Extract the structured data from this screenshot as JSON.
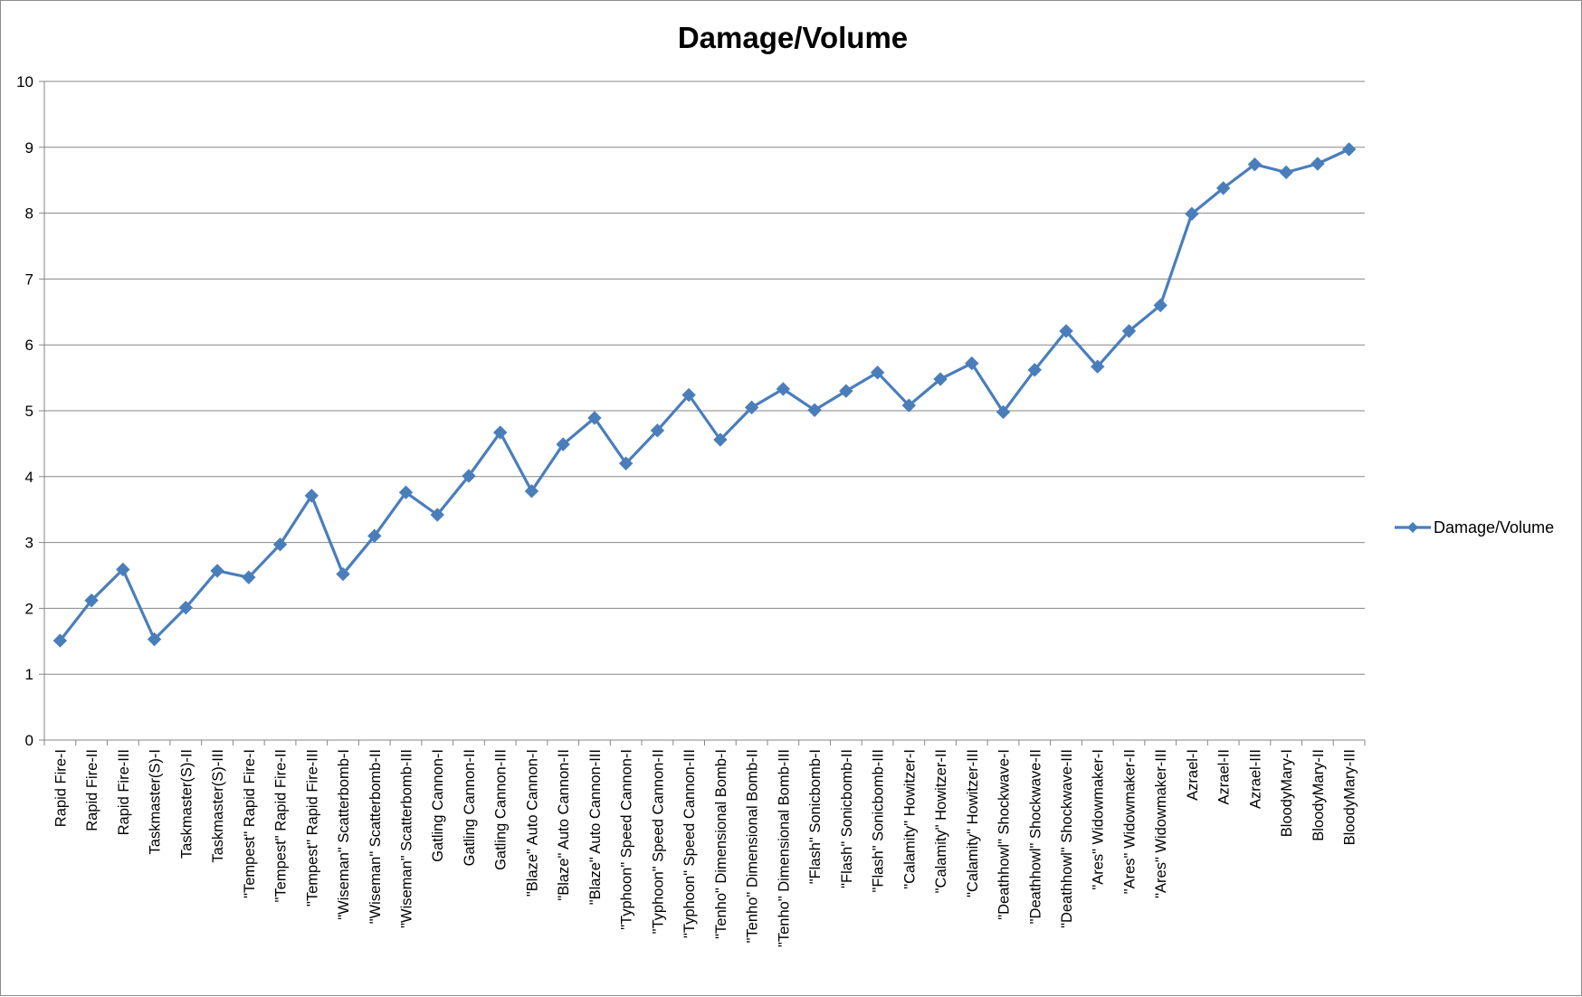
{
  "chart_data": {
    "type": "line",
    "title": "Damage/Volume",
    "xlabel": "",
    "ylabel": "",
    "ylim": [
      0,
      10
    ],
    "yticks": [
      0,
      1,
      2,
      3,
      4,
      5,
      6,
      7,
      8,
      9,
      10
    ],
    "grid": true,
    "legend_position": "right",
    "categories": [
      "Rapid Fire-I",
      "Rapid Fire-II",
      "Rapid Fire-III",
      "Taskmaster(S)-I",
      "Taskmaster(S)-II",
      "Taskmaster(S)-III",
      "\"Tempest\" Rapid Fire-I",
      "\"Tempest\" Rapid Fire-II",
      "\"Tempest\" Rapid Fire-III",
      "\"Wiseman\" Scatterbomb-I",
      "\"Wiseman\" Scatterbomb-II",
      "\"Wiseman\" Scatterbomb-III",
      "Gatling Cannon-I",
      "Gatling Cannon-II",
      "Gatling Cannon-III",
      "\"Blaze\" Auto Cannon-I",
      "\"Blaze\" Auto Cannon-II",
      "\"Blaze\" Auto Cannon-III",
      "\"Typhoon\" Speed Cannon-I",
      "\"Typhoon\" Speed Cannon-II",
      "\"Typhoon\" Speed Cannon-III",
      "\"Tenho\" Dimensional Bomb-I",
      "\"Tenho\" Dimensional Bomb-II",
      "\"Tenho\" Dimensional Bomb-III",
      "\"Flash\" Sonicbomb-I",
      "\"Flash\" Sonicbomb-II",
      "\"Flash\" Sonicbomb-III",
      "\"Calamity\" Howitzer-I",
      "\"Calamity\" Howitzer-II",
      "\"Calamity\" Howitzer-III",
      "\"Deathhowl\" Shockwave-I",
      "\"Deathhowl\" Shockwave-II",
      "\"Deathhowl\" Shockwave-III",
      "\"Ares\" Widowmaker-I",
      "\"Ares\" Widowmaker-II",
      "\"Ares\" Widowmaker-III",
      "Azrael-I",
      "Azrael-II",
      "Azrael-III",
      "BloodyMary-I",
      "BloodyMary-II",
      "BloodyMary-III"
    ],
    "series": [
      {
        "name": "Damage/Volume",
        "color": "#4a7ebb",
        "marker": "diamond",
        "values": [
          1.51,
          2.12,
          2.59,
          1.53,
          2.01,
          2.57,
          2.47,
          2.97,
          3.71,
          2.52,
          3.1,
          3.76,
          3.42,
          4.01,
          4.67,
          3.78,
          4.49,
          4.89,
          4.2,
          4.7,
          5.24,
          4.56,
          5.05,
          5.33,
          5.01,
          5.3,
          5.58,
          5.08,
          5.48,
          5.72,
          4.98,
          5.62,
          6.21,
          5.67,
          6.21,
          6.6,
          7.99,
          8.38,
          8.74,
          8.62,
          8.75,
          8.97
        ]
      }
    ]
  }
}
